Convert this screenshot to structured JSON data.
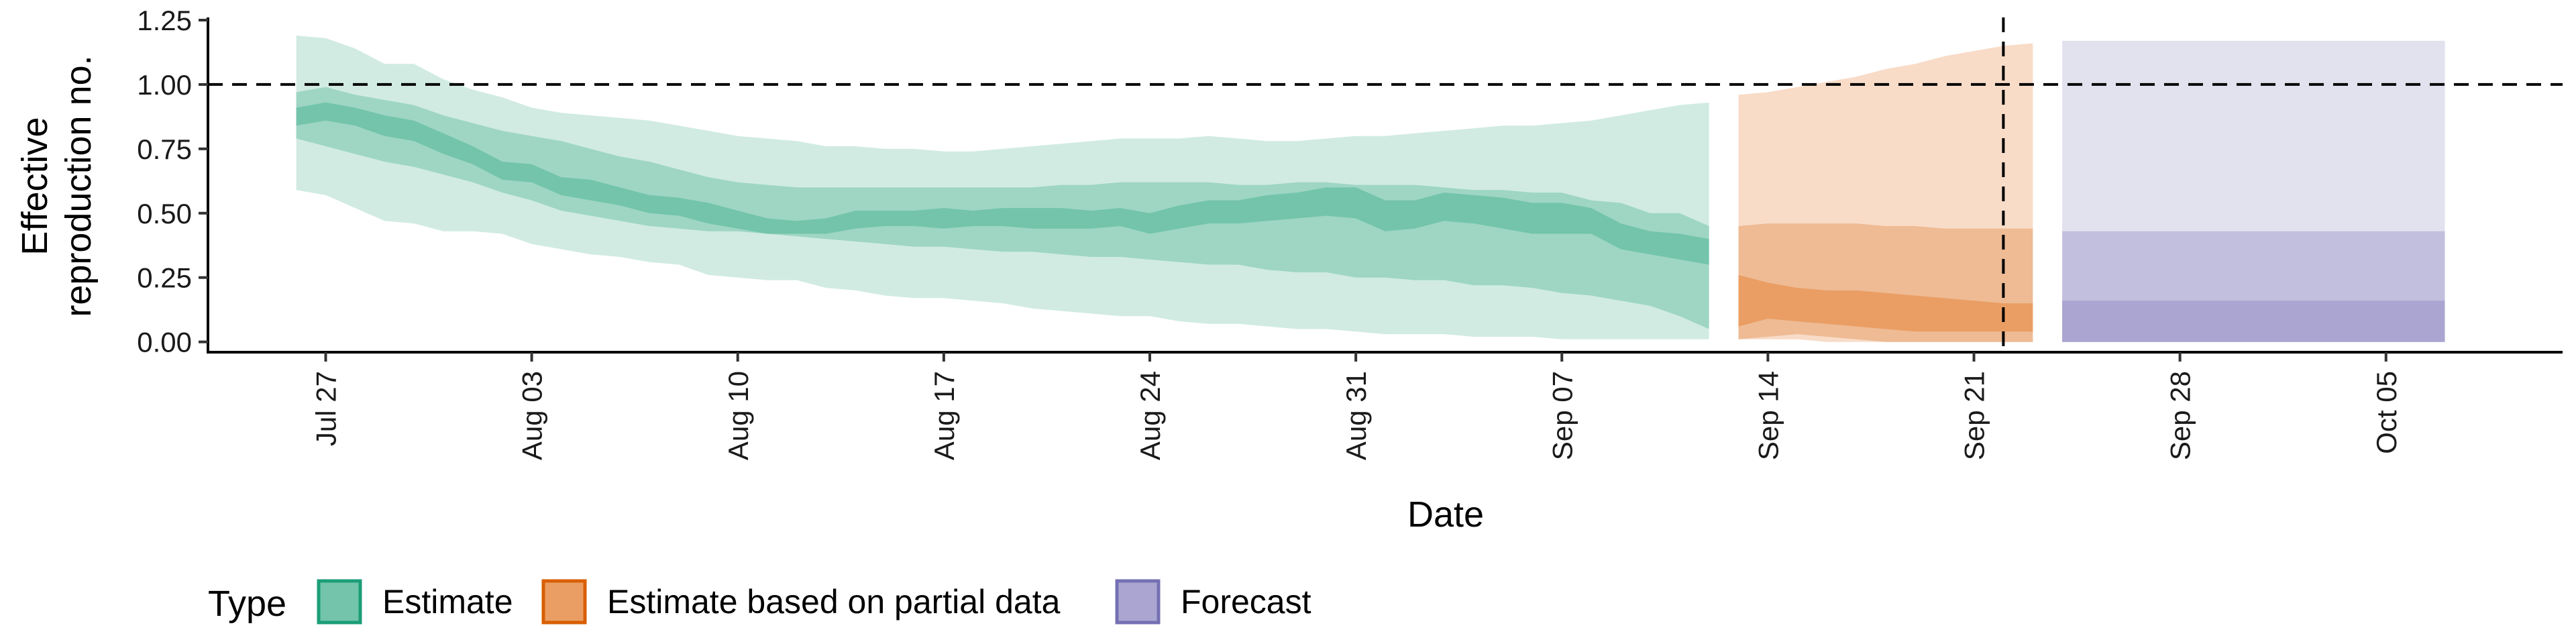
{
  "chart_data": {
    "type": "area",
    "xlabel": "Date",
    "ylabel": "Effective reproduction no.",
    "ylabel_lines": [
      "Effective",
      "reproduction no."
    ],
    "ylim": [
      -0.04,
      1.25
    ],
    "xlim": [
      "2020-07-23",
      "2020-10-11"
    ],
    "yticks": [
      {
        "value": 0.0,
        "label": "0.00"
      },
      {
        "value": 0.25,
        "label": "0.25"
      },
      {
        "value": 0.5,
        "label": "0.50"
      },
      {
        "value": 0.75,
        "label": "0.75"
      },
      {
        "value": 1.0,
        "label": "1.00"
      },
      {
        "value": 1.25,
        "label": "1.25"
      }
    ],
    "xticks": [
      {
        "date": "2020-07-27",
        "label": "Jul 27"
      },
      {
        "date": "2020-08-03",
        "label": "Aug 03"
      },
      {
        "date": "2020-08-10",
        "label": "Aug 10"
      },
      {
        "date": "2020-08-17",
        "label": "Aug 17"
      },
      {
        "date": "2020-08-24",
        "label": "Aug 24"
      },
      {
        "date": "2020-08-31",
        "label": "Aug 31"
      },
      {
        "date": "2020-09-07",
        "label": "Sep 07"
      },
      {
        "date": "2020-09-14",
        "label": "Sep 14"
      },
      {
        "date": "2020-09-21",
        "label": "Sep 21"
      },
      {
        "date": "2020-09-28",
        "label": "Sep 28"
      },
      {
        "date": "2020-10-05",
        "label": "Oct 05"
      }
    ],
    "reference_line": {
      "y": 1.0,
      "style": "dashed"
    },
    "vertical_line": {
      "date": "2020-09-22",
      "style": "dashed"
    },
    "grid": false,
    "legend": {
      "title": "Type",
      "position": "bottom-left",
      "entries": [
        {
          "name": "Estimate",
          "fill": "#73c4aa",
          "border": "#1b9e77"
        },
        {
          "name": "Estimate based on partial data",
          "fill": "#ea9e64",
          "border": "#d95f02"
        },
        {
          "name": "Forecast",
          "fill": "#aaa6d1",
          "border": "#7570b3"
        }
      ]
    },
    "series": [
      {
        "name": "Estimate",
        "colors": {
          "outer": "#d1ebe2",
          "mid": "#9ed6c3",
          "inner": "#73c4aa"
        },
        "x": [
          "2020-07-26",
          "2020-07-27",
          "2020-07-28",
          "2020-07-29",
          "2020-07-30",
          "2020-07-31",
          "2020-08-01",
          "2020-08-02",
          "2020-08-03",
          "2020-08-04",
          "2020-08-05",
          "2020-08-06",
          "2020-08-07",
          "2020-08-08",
          "2020-08-09",
          "2020-08-10",
          "2020-08-11",
          "2020-08-12",
          "2020-08-13",
          "2020-08-14",
          "2020-08-15",
          "2020-08-16",
          "2020-08-17",
          "2020-08-18",
          "2020-08-19",
          "2020-08-20",
          "2020-08-21",
          "2020-08-22",
          "2020-08-23",
          "2020-08-24",
          "2020-08-25",
          "2020-08-26",
          "2020-08-27",
          "2020-08-28",
          "2020-08-29",
          "2020-08-30",
          "2020-08-31",
          "2020-09-01",
          "2020-09-02",
          "2020-09-03",
          "2020-09-04",
          "2020-09-05",
          "2020-09-06",
          "2020-09-07",
          "2020-09-08",
          "2020-09-09",
          "2020-09-10",
          "2020-09-11",
          "2020-09-12"
        ],
        "outer_lower": [
          0.59,
          0.57,
          0.52,
          0.47,
          0.46,
          0.43,
          0.43,
          0.42,
          0.38,
          0.36,
          0.34,
          0.33,
          0.31,
          0.3,
          0.26,
          0.25,
          0.24,
          0.24,
          0.21,
          0.2,
          0.18,
          0.17,
          0.17,
          0.16,
          0.15,
          0.13,
          0.12,
          0.11,
          0.1,
          0.1,
          0.08,
          0.07,
          0.07,
          0.06,
          0.05,
          0.05,
          0.04,
          0.03,
          0.03,
          0.03,
          0.02,
          0.02,
          0.02,
          0.01,
          0.01,
          0.01,
          0.01,
          0.01,
          0.01
        ],
        "outer_upper": [
          1.19,
          1.18,
          1.14,
          1.08,
          1.08,
          1.02,
          0.98,
          0.95,
          0.91,
          0.89,
          0.88,
          0.87,
          0.86,
          0.84,
          0.82,
          0.8,
          0.79,
          0.78,
          0.76,
          0.76,
          0.75,
          0.75,
          0.74,
          0.74,
          0.75,
          0.76,
          0.77,
          0.78,
          0.79,
          0.79,
          0.79,
          0.8,
          0.79,
          0.78,
          0.78,
          0.79,
          0.8,
          0.8,
          0.81,
          0.82,
          0.83,
          0.84,
          0.84,
          0.85,
          0.86,
          0.88,
          0.9,
          0.92,
          0.93
        ],
        "mid_lower": [
          0.79,
          0.76,
          0.73,
          0.7,
          0.68,
          0.65,
          0.62,
          0.58,
          0.55,
          0.51,
          0.49,
          0.47,
          0.45,
          0.44,
          0.43,
          0.43,
          0.42,
          0.41,
          0.4,
          0.39,
          0.38,
          0.37,
          0.37,
          0.36,
          0.35,
          0.35,
          0.34,
          0.33,
          0.33,
          0.32,
          0.31,
          0.3,
          0.3,
          0.28,
          0.27,
          0.27,
          0.25,
          0.25,
          0.24,
          0.24,
          0.22,
          0.22,
          0.21,
          0.19,
          0.18,
          0.16,
          0.14,
          0.1,
          0.05
        ],
        "mid_upper": [
          0.97,
          0.99,
          0.96,
          0.94,
          0.92,
          0.88,
          0.85,
          0.82,
          0.8,
          0.78,
          0.75,
          0.72,
          0.7,
          0.67,
          0.64,
          0.62,
          0.61,
          0.6,
          0.6,
          0.6,
          0.6,
          0.6,
          0.6,
          0.6,
          0.6,
          0.6,
          0.61,
          0.61,
          0.62,
          0.62,
          0.62,
          0.62,
          0.61,
          0.61,
          0.62,
          0.62,
          0.61,
          0.61,
          0.61,
          0.6,
          0.59,
          0.59,
          0.58,
          0.58,
          0.55,
          0.54,
          0.5,
          0.5,
          0.45
        ],
        "inner_lower": [
          0.84,
          0.86,
          0.84,
          0.8,
          0.78,
          0.73,
          0.69,
          0.63,
          0.62,
          0.57,
          0.55,
          0.53,
          0.5,
          0.49,
          0.46,
          0.44,
          0.42,
          0.42,
          0.42,
          0.44,
          0.45,
          0.45,
          0.44,
          0.45,
          0.45,
          0.44,
          0.44,
          0.44,
          0.45,
          0.42,
          0.44,
          0.46,
          0.46,
          0.47,
          0.48,
          0.49,
          0.48,
          0.43,
          0.44,
          0.47,
          0.46,
          0.44,
          0.42,
          0.42,
          0.42,
          0.36,
          0.34,
          0.32,
          0.3
        ],
        "inner_upper": [
          0.91,
          0.93,
          0.91,
          0.88,
          0.86,
          0.81,
          0.76,
          0.7,
          0.69,
          0.64,
          0.63,
          0.6,
          0.57,
          0.56,
          0.54,
          0.51,
          0.48,
          0.47,
          0.48,
          0.51,
          0.51,
          0.51,
          0.52,
          0.51,
          0.52,
          0.52,
          0.52,
          0.51,
          0.52,
          0.5,
          0.53,
          0.55,
          0.55,
          0.57,
          0.58,
          0.6,
          0.6,
          0.55,
          0.55,
          0.58,
          0.57,
          0.56,
          0.54,
          0.54,
          0.52,
          0.46,
          0.43,
          0.42,
          0.4
        ]
      },
      {
        "name": "Estimate based on partial data",
        "colors": {
          "outer": "#f8dcc8",
          "mid": "#eebb94",
          "inner": "#ea9e64"
        },
        "x": [
          "2020-09-13",
          "2020-09-14",
          "2020-09-15",
          "2020-09-16",
          "2020-09-17",
          "2020-09-18",
          "2020-09-19",
          "2020-09-20",
          "2020-09-21",
          "2020-09-22",
          "2020-09-23"
        ],
        "outer_lower": [
          0.01,
          0.01,
          0.01,
          0.0,
          0.0,
          0.0,
          0.0,
          0.0,
          0.0,
          0.0,
          0.0
        ],
        "outer_upper": [
          0.96,
          0.97,
          0.99,
          1.01,
          1.03,
          1.06,
          1.08,
          1.11,
          1.13,
          1.15,
          1.16
        ],
        "mid_lower": [
          0.01,
          0.02,
          0.03,
          0.02,
          0.01,
          0.0,
          0.0,
          0.0,
          0.0,
          0.0,
          0.0
        ],
        "mid_upper": [
          0.45,
          0.46,
          0.46,
          0.46,
          0.46,
          0.45,
          0.45,
          0.44,
          0.44,
          0.44,
          0.44
        ],
        "inner_lower": [
          0.06,
          0.09,
          0.08,
          0.07,
          0.06,
          0.05,
          0.04,
          0.04,
          0.04,
          0.04,
          0.04
        ],
        "inner_upper": [
          0.26,
          0.23,
          0.21,
          0.2,
          0.2,
          0.19,
          0.18,
          0.17,
          0.16,
          0.15,
          0.15
        ]
      },
      {
        "name": "Forecast",
        "colors": {
          "outer": "#e2e1ee",
          "mid": "#c2bfde",
          "inner": "#aaa6d1"
        },
        "x": [
          "2020-09-24",
          "2020-10-07"
        ],
        "outer_lower": [
          0.0,
          0.0
        ],
        "outer_upper": [
          1.17,
          1.17
        ],
        "mid_lower": [
          0.0,
          0.0
        ],
        "mid_upper": [
          0.43,
          0.43
        ],
        "inner_lower": [
          0.0,
          0.0
        ],
        "inner_upper": [
          0.16,
          0.16
        ]
      }
    ]
  }
}
